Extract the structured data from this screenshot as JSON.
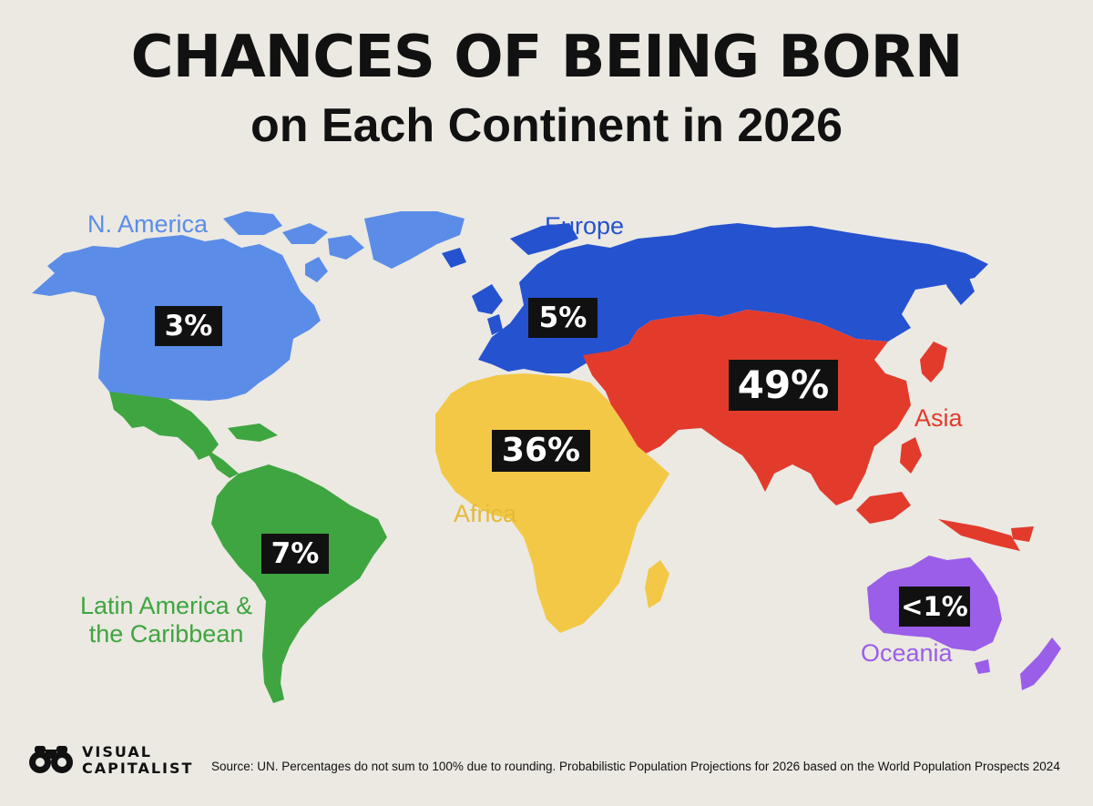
{
  "title": "CHANCES OF BEING BORN",
  "subtitle": "on Each Continent in 2026",
  "continents": [
    {
      "name": "N. America",
      "value": "3%",
      "color": "#5b8de8"
    },
    {
      "name": "Europe",
      "value": "5%",
      "color": "#2552cf"
    },
    {
      "name": "Asia",
      "value": "49%",
      "color": "#e23b2c"
    },
    {
      "name": "Africa",
      "value": "36%",
      "color": "#f3c846"
    },
    {
      "name": "Latin America &",
      "name_line2": "the Caribbean",
      "value": "7%",
      "color": "#3fa540"
    },
    {
      "name": "Oceania",
      "value": "<1%",
      "color": "#9b5ee8"
    }
  ],
  "logo": {
    "line1": "VISUAL",
    "line2": "CAPITALIST"
  },
  "source": "Source: UN. Percentages do not sum to 100% due to rounding. Probabilistic Population Projections for 2026 based on the World Population Prospects 2024"
}
